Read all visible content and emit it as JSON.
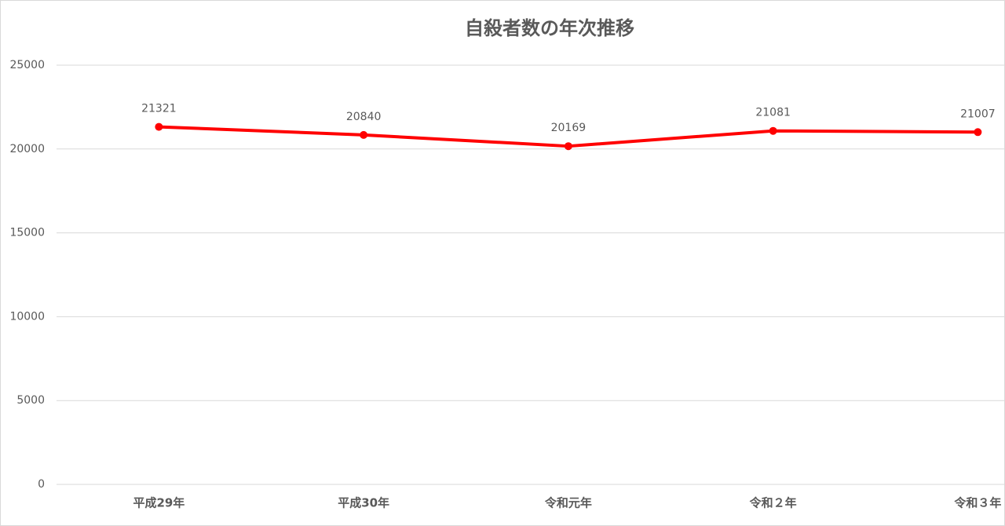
{
  "chart_data": {
    "type": "line",
    "title": "自殺者数の年次推移",
    "categories": [
      "平成29年",
      "平成30年",
      "令和元年",
      "令和２年",
      "令和３年"
    ],
    "series": [
      {
        "name": "自殺者数",
        "color": "#ff0000",
        "values": [
          21321,
          20840,
          20169,
          21081,
          21007
        ]
      }
    ],
    "ylim": [
      0,
      25000
    ],
    "yticks": [
      0,
      5000,
      10000,
      15000,
      20000,
      25000
    ],
    "grid": true
  }
}
